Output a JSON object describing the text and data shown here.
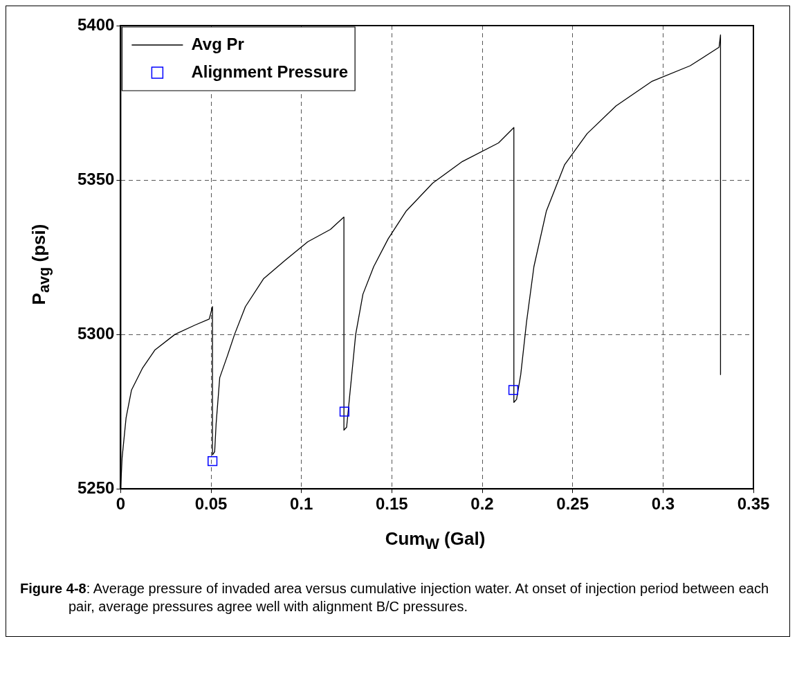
{
  "chart_data": {
    "type": "line",
    "xlabel": "Cum$_{W}$ (Gal)",
    "ylabel": "P$_{avg}$ (psi)",
    "xlim": [
      0,
      0.35
    ],
    "xticks": [
      0,
      0.05,
      0.1,
      0.15,
      0.2,
      0.25,
      0.3,
      0.35
    ],
    "ylim": [
      5250,
      5400
    ],
    "yticks": [
      5250,
      5300,
      5350,
      5400
    ],
    "grid": true,
    "legend": "top left",
    "series": [
      {
        "name": "Avg Pr",
        "color": "#000000",
        "marker": "none",
        "line_style": "solid",
        "x": [
          0,
          0.0008,
          0.003,
          0.006,
          0.012,
          0.019,
          0.03,
          0.041,
          0.049,
          0.0508,
          0.0508,
          0.052,
          0.0528,
          0.0548,
          0.059,
          0.063,
          0.069,
          0.079,
          0.091,
          0.1035,
          0.116,
          0.1235,
          0.1235,
          0.125,
          0.127,
          0.13,
          0.134,
          0.14,
          0.148,
          0.158,
          0.1726,
          0.189,
          0.209,
          0.2175,
          0.2175,
          0.219,
          0.2213,
          0.2245,
          0.2286,
          0.2355,
          0.2456,
          0.258,
          0.274,
          0.294,
          0.315,
          0.331,
          0.3318,
          0.3318
        ],
        "values": [
          5250,
          5260,
          5273,
          5282,
          5289,
          5295,
          5300,
          5303,
          5305,
          5309,
          5261,
          5262,
          5271,
          5286,
          5293,
          5300,
          5309,
          5318,
          5324,
          5330,
          5334,
          5338,
          5269,
          5270,
          5282,
          5300,
          5313,
          5322,
          5331,
          5340,
          5349,
          5356,
          5362,
          5367,
          5278,
          5279,
          5287,
          5304,
          5322,
          5340,
          5355,
          5365,
          5374,
          5382,
          5387,
          5393,
          5397,
          5287
        ]
      },
      {
        "name": "Alignment Pressure",
        "type": "scatter",
        "color": "#0000ff",
        "marker": "square",
        "x": [
          0.0508,
          0.1238,
          0.2172
        ],
        "values": [
          5259,
          5275,
          5282
        ]
      }
    ],
    "annotations": [
      "Figure 4-8: Average pressure of invaded area versus cumulative injection water. At onset of injection period between each pair, average pressures agree well with alignment B/C pressures."
    ]
  }
}
